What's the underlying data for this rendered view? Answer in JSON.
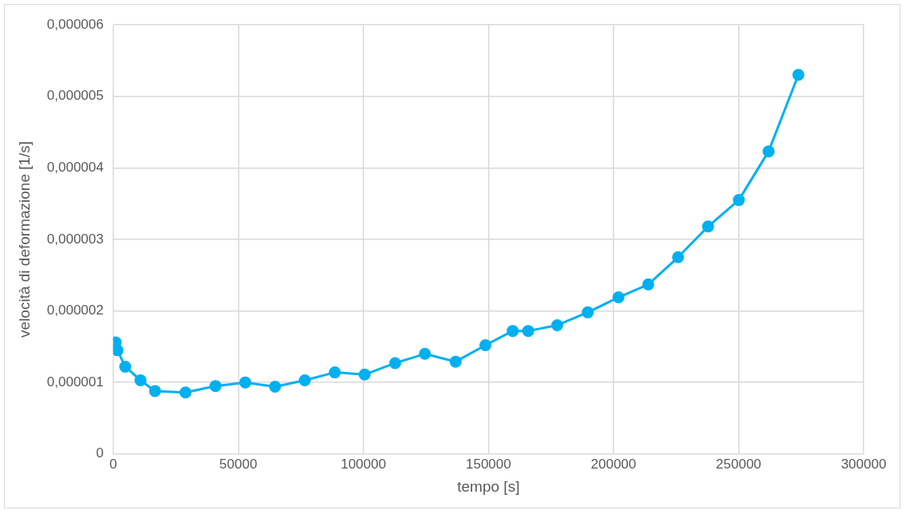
{
  "chart_data": {
    "type": "line",
    "xlabel": "tempo [s]",
    "ylabel": "velocità di deformazione [1/s]",
    "x": [
      1000,
      1700,
      4800,
      10900,
      16700,
      28900,
      40900,
      52800,
      64700,
      76600,
      88600,
      100500,
      112700,
      124600,
      136900,
      148800,
      159700,
      165900,
      177500,
      189700,
      202000,
      213900,
      225800,
      237800,
      250100,
      262000,
      273900
    ],
    "series": [
      {
        "color": "#00b0f0",
        "values": [
          1.56e-06,
          1.45e-06,
          1.22e-06,
          1.03e-06,
          8.8e-07,
          8.6e-07,
          9.5e-07,
          1e-06,
          9.4e-07,
          1.03e-06,
          1.14e-06,
          1.11e-06,
          1.27e-06,
          1.4e-06,
          1.29e-06,
          1.52e-06,
          1.72e-06,
          1.72e-06,
          1.8e-06,
          1.98e-06,
          2.19e-06,
          2.37e-06,
          2.75e-06,
          3.18e-06,
          3.55e-06,
          4.23e-06,
          5.3e-06
        ]
      }
    ],
    "xlim": [
      0,
      300000
    ],
    "xticks": [
      0,
      50000,
      100000,
      150000,
      200000,
      250000,
      300000
    ],
    "ylim": [
      0,
      6e-06
    ],
    "yticks": [
      0,
      {
        "value": 1e-06,
        "label": "0,000001"
      },
      {
        "value": 2e-06,
        "label": "0,000002"
      },
      {
        "value": 3e-06,
        "label": "0,000003"
      },
      {
        "value": 4e-06,
        "label": "0,000004"
      },
      {
        "value": 5e-06,
        "label": "0,000005"
      },
      {
        "value": 6e-06,
        "label": "0,000006"
      }
    ],
    "grid": true,
    "legend": false,
    "marker": "circle",
    "line_style": "solid"
  }
}
